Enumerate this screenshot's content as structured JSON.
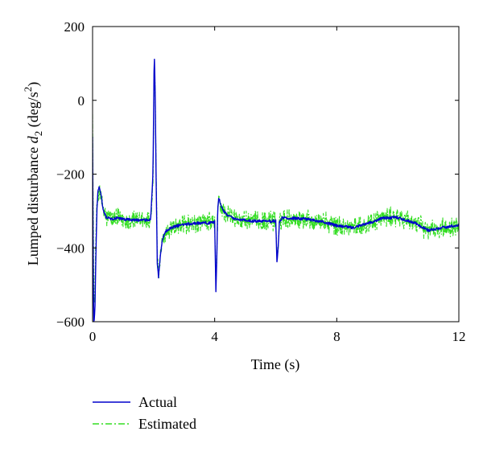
{
  "chart_data": {
    "type": "line",
    "title": "",
    "xlabel": "Time (s)",
    "ylabel_main": "Lumped disturbance ",
    "ylabel_symbol": "d",
    "ylabel_subscript": "2",
    "ylabel_unit_open": " (deg/s",
    "ylabel_unit_sup": "2",
    "ylabel_unit_close": ")",
    "xlim": [
      0,
      12
    ],
    "ylim": [
      -600,
      200
    ],
    "xticks": [
      0,
      4,
      8,
      12
    ],
    "xtick_labels": [
      "0",
      "4",
      "8",
      "12"
    ],
    "yticks": [
      -600,
      -400,
      -200,
      0,
      200
    ],
    "ytick_labels": [
      "−600",
      "−400",
      "−200",
      "0",
      "200"
    ],
    "grid": false,
    "legend_position": "bottom-left, outside plot",
    "series": [
      {
        "name": "Actual",
        "color": "#0000cc",
        "style": "solid",
        "x": [
          0,
          0.02,
          0.04,
          0.06,
          0.08,
          0.1,
          0.14,
          0.18,
          0.22,
          0.28,
          0.35,
          0.45,
          0.6,
          0.8,
          1.0,
          1.3,
          1.6,
          1.9,
          1.98,
          2.02,
          2.05,
          2.08,
          2.12,
          2.16,
          2.2,
          2.28,
          2.4,
          2.6,
          2.8,
          3.0,
          3.4,
          3.8,
          4.0,
          4.04,
          4.07,
          4.1,
          4.14,
          4.18,
          4.25,
          4.4,
          4.6,
          5.0,
          5.4,
          5.8,
          6.0,
          6.04,
          6.08,
          6.12,
          6.2,
          6.3,
          6.6,
          7.0,
          7.5,
          8.0,
          8.5,
          9.0,
          9.5,
          10.0,
          10.5,
          11.0,
          11.5,
          12.0
        ],
        "y": [
          -100,
          -450,
          -600,
          -590,
          -560,
          -460,
          -300,
          -240,
          -235,
          -260,
          -300,
          -318,
          -322,
          -320,
          -322,
          -324,
          -325,
          -323,
          -200,
          135,
          30,
          -200,
          -440,
          -480,
          -440,
          -380,
          -355,
          -345,
          -340,
          -336,
          -333,
          -332,
          -330,
          -515,
          -430,
          -290,
          -265,
          -275,
          -295,
          -310,
          -320,
          -325,
          -328,
          -328,
          -326,
          -440,
          -400,
          -330,
          -320,
          -318,
          -320,
          -322,
          -328,
          -340,
          -345,
          -335,
          -318,
          -318,
          -330,
          -352,
          -345,
          -338
        ]
      },
      {
        "name": "Estimated",
        "color": "#33dd22",
        "style": "dash-dot",
        "x": [
          0,
          0.02,
          0.04,
          0.06,
          0.08,
          0.1,
          0.14,
          0.18,
          0.22,
          0.28,
          0.35,
          0.45,
          0.6,
          0.8,
          1.0,
          1.3,
          1.6,
          1.9,
          1.98,
          2.02,
          2.05,
          2.08,
          2.12,
          2.16,
          2.2,
          2.28,
          2.4,
          2.6,
          2.8,
          3.0,
          3.4,
          3.8,
          4.0,
          4.04,
          4.07,
          4.1,
          4.14,
          4.18,
          4.25,
          4.4,
          4.6,
          5.0,
          5.4,
          5.8,
          6.0,
          6.04,
          6.08,
          6.12,
          6.2,
          6.3,
          6.6,
          7.0,
          7.5,
          8.0,
          8.5,
          9.0,
          9.5,
          10.0,
          10.5,
          11.0,
          11.5,
          12.0
        ],
        "y": [
          -20,
          -300,
          -510,
          -560,
          -500,
          -400,
          -300,
          -250,
          -245,
          -262,
          -300,
          -318,
          -322,
          -320,
          -322,
          -324,
          -325,
          -323,
          -220,
          100,
          40,
          -180,
          -420,
          -470,
          -450,
          -385,
          -358,
          -345,
          -340,
          -336,
          -333,
          -332,
          -330,
          -500,
          -440,
          -300,
          -270,
          -280,
          -295,
          -310,
          -320,
          -325,
          -328,
          -328,
          -326,
          -420,
          -395,
          -335,
          -322,
          -318,
          -320,
          -322,
          -328,
          -340,
          -345,
          -335,
          -318,
          -318,
          -330,
          -352,
          -345,
          -338
        ],
        "noise_amplitude": 30
      }
    ]
  }
}
